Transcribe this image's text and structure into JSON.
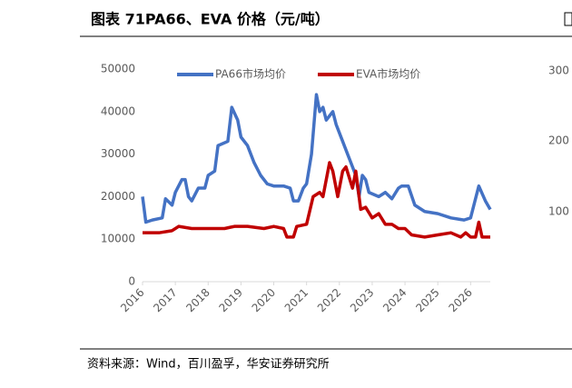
{
  "chart_data": {
    "type": "line",
    "title": "图表 71PA66、EVA 价格（元/吨）",
    "source": "资料来源：Wind，百川盈孚，华安证券研究所",
    "xlim": [
      2016,
      2026.6
    ],
    "xticks": [
      2016,
      2017,
      2018,
      2019,
      2020,
      2021,
      2022,
      2023,
      2024,
      2025,
      2026
    ],
    "ylim": [
      0,
      50000
    ],
    "yticks": [
      0,
      10000,
      20000,
      30000,
      40000,
      50000
    ],
    "grid": false,
    "legend": "top",
    "series": [
      {
        "name": "PA66市场均价",
        "color": "#4472c4",
        "x": [
          2016.0,
          2016.1,
          2016.3,
          2016.6,
          2016.7,
          2016.9,
          2017.0,
          2017.2,
          2017.3,
          2017.4,
          2017.5,
          2017.7,
          2017.9,
          2018.0,
          2018.2,
          2018.3,
          2018.6,
          2018.72,
          2018.9,
          2019.0,
          2019.2,
          2019.4,
          2019.6,
          2019.8,
          2020.0,
          2020.3,
          2020.5,
          2020.6,
          2020.75,
          2020.9,
          2021.0,
          2021.15,
          2021.3,
          2021.4,
          2021.5,
          2021.6,
          2021.8,
          2021.9,
          2022.1,
          2022.3,
          2022.5,
          2022.6,
          2022.7,
          2022.8,
          2022.9,
          2023.2,
          2023.4,
          2023.6,
          2023.8,
          2023.9,
          2024.1,
          2024.3,
          2024.6,
          2025.0,
          2025.4,
          2025.8,
          2026.0,
          2026.25,
          2026.45,
          2026.6
        ],
        "values": [
          20000,
          14000,
          14500,
          15000,
          19500,
          18000,
          21000,
          24000,
          24000,
          20000,
          19000,
          22000,
          22000,
          25000,
          26000,
          32000,
          33000,
          41000,
          38000,
          34000,
          32000,
          28000,
          25000,
          23000,
          22500,
          22500,
          22000,
          19000,
          19000,
          22000,
          23000,
          30000,
          44000,
          40000,
          41000,
          38000,
          40000,
          37000,
          33000,
          29000,
          25000,
          20000,
          25000,
          24000,
          21000,
          20000,
          21000,
          19500,
          22000,
          22500,
          22500,
          18000,
          16500,
          16000,
          15000,
          14500,
          15000,
          22500,
          19000,
          17000
        ]
      },
      {
        "name": "EVA市场均价",
        "color": "#c00000",
        "x": [
          2016.0,
          2016.5,
          2016.9,
          2017.1,
          2017.5,
          2018.0,
          2018.5,
          2018.8,
          2019.2,
          2019.7,
          2020.0,
          2020.3,
          2020.4,
          2020.6,
          2020.7,
          2021.0,
          2021.2,
          2021.4,
          2021.5,
          2021.7,
          2021.8,
          2021.95,
          2022.1,
          2022.2,
          2022.4,
          2022.5,
          2022.65,
          2022.8,
          2023.0,
          2023.2,
          2023.4,
          2023.6,
          2023.8,
          2024.0,
          2024.2,
          2024.6,
          2025.0,
          2025.4,
          2025.7,
          2025.85,
          2026.0,
          2026.15,
          2026.25,
          2026.35,
          2026.6
        ],
        "values": [
          11500,
          11500,
          12000,
          13000,
          12500,
          12500,
          12500,
          13000,
          13000,
          12500,
          13000,
          12500,
          10500,
          10500,
          13000,
          13500,
          20000,
          21000,
          20000,
          28000,
          26000,
          20000,
          26000,
          27000,
          22000,
          26000,
          17000,
          17500,
          15000,
          16000,
          13500,
          13500,
          12500,
          12500,
          11000,
          10500,
          11000,
          11500,
          10500,
          11500,
          10500,
          10500,
          14000,
          10500,
          10500
        ]
      }
    ]
  },
  "partial_chart": {
    "yticks": [
      300,
      200,
      100
    ]
  }
}
